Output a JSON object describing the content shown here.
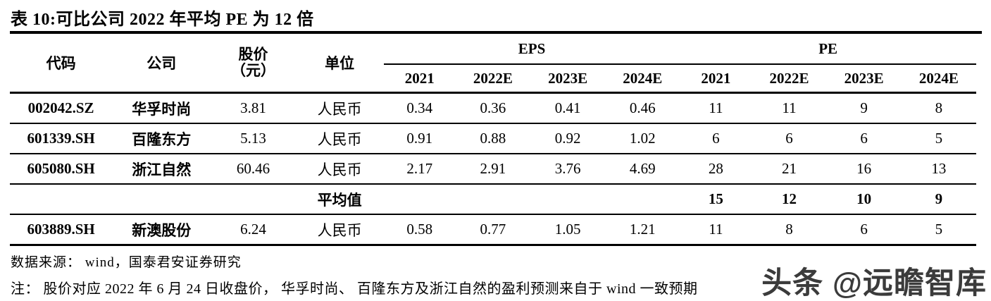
{
  "title": "表 10:可比公司 2022 年平均 PE 为 12 倍",
  "table": {
    "headers": {
      "code": "代码",
      "company": "公司",
      "price_line1": "股价",
      "price_line2": "（元）",
      "unit": "单位",
      "eps_group": "EPS",
      "pe_group": "PE",
      "years": [
        "2021",
        "2022E",
        "2023E",
        "2024E"
      ]
    },
    "rows": [
      {
        "type": "data",
        "cells": [
          "002042.SZ",
          "华孚时尚",
          "3.81",
          "人民币",
          "0.34",
          "0.36",
          "0.41",
          "0.46",
          "11",
          "11",
          "9",
          "8"
        ]
      },
      {
        "type": "data",
        "cells": [
          "601339.SH",
          "百隆东方",
          "5.13",
          "人民币",
          "0.91",
          "0.88",
          "0.92",
          "1.02",
          "6",
          "6",
          "6",
          "5"
        ]
      },
      {
        "type": "data",
        "cells": [
          "605080.SH",
          "浙江自然",
          "60.46",
          "人民币",
          "2.17",
          "2.91",
          "3.76",
          "4.69",
          "28",
          "21",
          "16",
          "13"
        ]
      },
      {
        "type": "average",
        "cells": [
          "",
          "",
          "",
          "平均值",
          "",
          "",
          "",
          "",
          "15",
          "12",
          "10",
          "9"
        ]
      },
      {
        "type": "data",
        "cells": [
          "603889.SH",
          "新澳股份",
          "6.24",
          "人民币",
          "0.58",
          "0.77",
          "1.05",
          "1.21",
          "11",
          "8",
          "6",
          "5"
        ]
      }
    ]
  },
  "footer": {
    "source": "数据来源： wind，国泰君安证券研究",
    "note": "注： 股价对应 2022 年 6 月 24 日收盘价， 华孚时尚、 百隆东方及浙江自然的盈利预测来自于 wind 一致预期"
  },
  "watermark": "头条 @远瞻智库"
}
